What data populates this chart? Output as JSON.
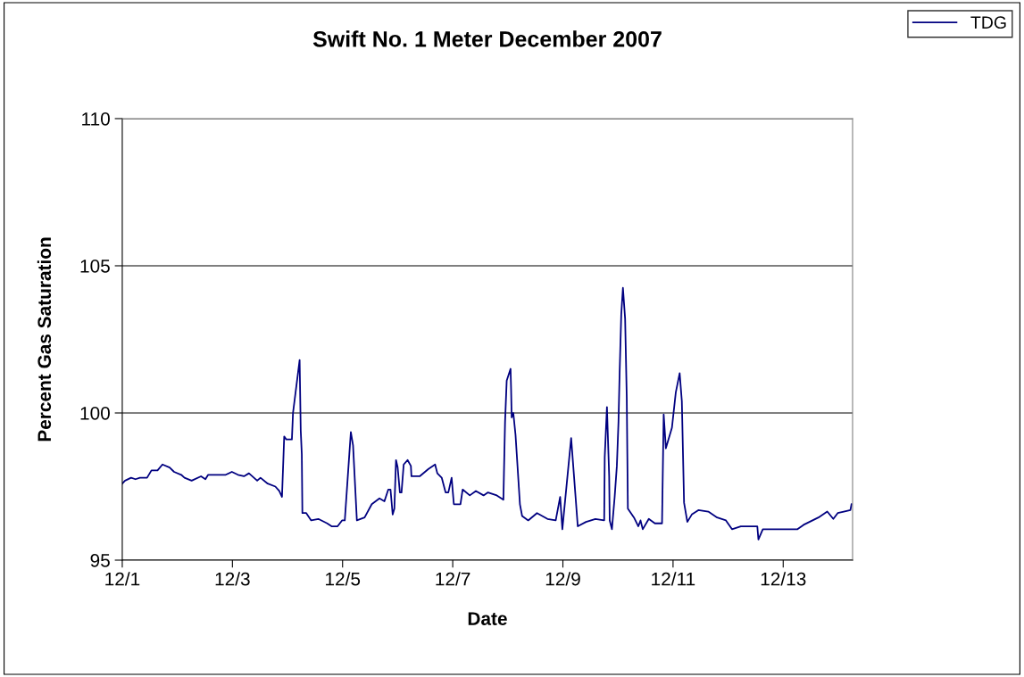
{
  "chart_data": {
    "type": "line",
    "title": "Swift No. 1 Meter December 2007",
    "xlabel": "Date",
    "ylabel": "Percent Gas Saturation",
    "x": [
      "2007-12-01T00:00",
      "2007-12-01T01:12",
      "2007-12-01T03:50",
      "2007-12-01T05:46",
      "2007-12-01T07:41",
      "2007-12-01T10:48",
      "2007-12-01T12:43",
      "2007-12-01T15:22",
      "2007-12-01T17:31",
      "2007-12-01T20:38",
      "2007-12-01T22:34",
      "2007-12-02T01:41",
      "2007-12-02T03:07",
      "2007-12-02T06:14",
      "2007-12-02T10:19",
      "2007-12-02T12:14",
      "2007-12-02T13:26",
      "2007-12-02T21:07",
      "2007-12-02T23:46",
      "2007-12-03T02:24",
      "2007-12-03T05:02",
      "2007-12-03T07:12",
      "2007-12-03T10:48",
      "2007-12-03T12:14",
      "2007-12-03T15:22",
      "2007-12-03T18:43",
      "2007-12-03T20:24",
      "2007-12-03T21:36",
      "2007-12-03T22:34",
      "2007-12-03T23:31",
      "2007-12-04T01:55",
      "2007-12-04T02:24",
      "2007-12-04T05:17",
      "2007-12-04T05:46",
      "2007-12-04T06:14",
      "2007-12-04T06:29",
      "2007-12-04T08:10",
      "2007-12-04T10:19",
      "2007-12-04T13:26",
      "2007-12-04T17:17",
      "2007-12-04T19:12",
      "2007-12-04T21:50",
      "2007-12-04T23:46",
      "2007-12-05T00:58",
      "2007-12-05T03:36",
      "2007-12-05T04:34",
      "2007-12-05T06:14",
      "2007-12-05T09:36",
      "2007-12-05T12:43",
      "2007-12-05T16:05",
      "2007-12-05T18:14",
      "2007-12-05T19:55",
      "2007-12-05T20:53",
      "2007-12-05T21:50",
      "2007-12-05T22:34",
      "2007-12-05T23:17",
      "2007-12-06T00:00",
      "2007-12-06T00:58",
      "2007-12-06T01:41",
      "2007-12-06T02:38",
      "2007-12-06T04:19",
      "2007-12-06T05:46",
      "2007-12-06T06:00",
      "2007-12-06T09:36",
      "2007-12-06T13:26",
      "2007-12-06T16:19",
      "2007-12-06T17:17",
      "2007-12-06T19:12",
      "2007-12-06T20:53",
      "2007-12-06T22:05",
      "2007-12-06T23:31",
      "2007-12-07T00:29",
      "2007-12-07T03:22",
      "2007-12-07T04:19",
      "2007-12-07T07:26",
      "2007-12-07T10:05",
      "2007-12-07T13:26",
      "2007-12-07T15:22",
      "2007-12-07T19:12",
      "2007-12-07T22:05",
      "2007-12-07T22:19",
      "2007-12-07T22:48",
      "2007-12-07T23:31",
      "2007-12-08T01:12",
      "2007-12-08T01:26",
      "2007-12-08T01:41",
      "2007-12-08T02:24",
      "2007-12-08T03:22",
      "2007-12-08T05:17",
      "2007-12-08T06:14",
      "2007-12-08T08:53",
      "2007-12-08T12:43",
      "2007-12-08T17:17",
      "2007-12-08T20:53",
      "2007-12-08T22:48",
      "2007-12-08T23:46",
      "2007-12-09T03:36",
      "2007-12-09T06:29",
      "2007-12-09T10:05",
      "2007-12-09T14:10",
      "2007-12-09T18:00",
      "2007-12-09T18:14",
      "2007-12-09T19:12",
      "2007-12-09T20:10",
      "2007-12-09T20:24",
      "2007-12-09T21:22",
      "2007-12-09T22:34",
      "2007-12-09T23:31",
      "2007-12-10T00:14",
      "2007-12-10T00:43",
      "2007-12-10T01:26",
      "2007-12-10T02:10",
      "2007-12-10T03:07",
      "2007-12-10T03:50",
      "2007-12-10T04:19",
      "2007-12-10T06:58",
      "2007-12-10T08:53",
      "2007-12-10T09:50",
      "2007-12-10T10:48",
      "2007-12-10T13:26",
      "2007-12-10T16:05",
      "2007-12-10T19:12",
      "2007-12-10T19:55",
      "2007-12-10T20:53",
      "2007-12-10T23:31",
      "2007-12-11T01:12",
      "2007-12-11T02:53",
      "2007-12-11T03:50",
      "2007-12-11T04:48",
      "2007-12-11T06:14",
      "2007-12-11T08:10",
      "2007-12-11T11:02",
      "2007-12-11T15:22",
      "2007-12-11T19:12",
      "2007-12-11T23:02",
      "2007-12-12T01:41",
      "2007-12-12T05:31",
      "2007-12-12T12:43",
      "2007-12-12T13:12",
      "2007-12-12T15:07",
      "2007-12-13T06:14",
      "2007-12-13T08:53",
      "2007-12-13T15:22",
      "2007-12-13T19:12",
      "2007-12-13T21:50",
      "2007-12-13T23:46",
      "2007-12-14T02:24",
      "2007-12-14T05:17",
      "2007-12-14T05:46"
    ],
    "series": [
      {
        "name": "TDG",
        "color": "#000080",
        "values": [
          97.6,
          97.7,
          97.8,
          97.75,
          97.8,
          97.8,
          98.05,
          98.05,
          98.25,
          98.15,
          98.0,
          97.9,
          97.8,
          97.7,
          97.85,
          97.75,
          97.9,
          97.9,
          98.0,
          97.9,
          97.85,
          97.95,
          97.7,
          97.8,
          97.6,
          97.5,
          97.35,
          97.15,
          99.2,
          99.1,
          99.1,
          100.0,
          101.8,
          99.4,
          98.6,
          96.6,
          96.6,
          96.35,
          96.4,
          96.25,
          96.15,
          96.15,
          96.35,
          96.35,
          99.35,
          98.9,
          96.35,
          96.45,
          96.9,
          97.1,
          97.0,
          97.4,
          97.4,
          96.55,
          96.75,
          98.4,
          98.15,
          97.3,
          97.3,
          98.25,
          98.4,
          98.2,
          97.85,
          97.85,
          98.1,
          98.25,
          97.95,
          97.8,
          97.3,
          97.3,
          97.8,
          96.9,
          96.9,
          97.4,
          97.2,
          97.35,
          97.2,
          97.3,
          97.2,
          97.05,
          97.95,
          99.7,
          101.1,
          101.5,
          100.8,
          99.85,
          100.0,
          99.25,
          96.9,
          96.5,
          96.35,
          96.6,
          96.4,
          96.35,
          97.15,
          96.05,
          99.15,
          96.15,
          96.3,
          96.4,
          96.35,
          98.5,
          100.2,
          97.85,
          96.35,
          96.05,
          97.15,
          98.2,
          99.7,
          101.35,
          103.35,
          104.25,
          103.2,
          100.5,
          96.75,
          96.45,
          96.15,
          96.35,
          96.05,
          96.4,
          96.25,
          96.25,
          99.95,
          98.8,
          99.5,
          100.7,
          101.35,
          100.4,
          96.95,
          96.3,
          96.55,
          96.7,
          96.65,
          96.45,
          96.35,
          96.05,
          96.15,
          96.15,
          95.7,
          96.05,
          96.05,
          96.2,
          96.45,
          96.65,
          96.4,
          96.6,
          96.65,
          96.7,
          96.9
        ]
      }
    ],
    "xlim": [
      "2007-12-01T00:00",
      "2007-12-14T06:14"
    ],
    "xticks": [
      {
        "value": "2007-12-01",
        "label": "12/1"
      },
      {
        "value": "2007-12-03",
        "label": "12/3"
      },
      {
        "value": "2007-12-05",
        "label": "12/5"
      },
      {
        "value": "2007-12-07",
        "label": "12/7"
      },
      {
        "value": "2007-12-09",
        "label": "12/9"
      },
      {
        "value": "2007-12-11",
        "label": "12/11"
      },
      {
        "value": "2007-12-13",
        "label": "12/13"
      }
    ],
    "ylim": [
      95,
      110
    ],
    "yticks": [
      95,
      100,
      105,
      110
    ],
    "grid": "y",
    "legend": "top right",
    "marker": "none",
    "line_style": "solid"
  }
}
